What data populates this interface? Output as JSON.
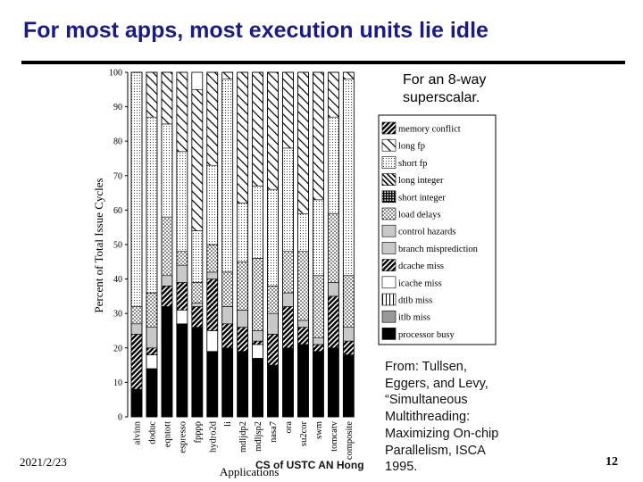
{
  "slide": {
    "title": "For most apps, most execution units lie idle",
    "note": [
      "For an 8-way",
      "superscalar."
    ],
    "source": [
      "From: Tullsen,",
      "Eggers, and Levy,",
      "“Simultaneous",
      "Multithreading:",
      "Maximizing On-chip",
      "Parallelism, ISCA",
      "1995."
    ],
    "date": "2021/2/23",
    "footer": "CS of USTC AN Hong",
    "page": "12"
  },
  "chart_data": {
    "type": "bar",
    "stacked": true,
    "title": "",
    "xlabel": "Applications",
    "ylabel": "Percent of Total Issue Cycles",
    "ylim": [
      0,
      100
    ],
    "yticks": [
      "0",
      "10",
      "20",
      "30",
      "40",
      "50",
      "60",
      "70",
      "80",
      "90",
      "100"
    ],
    "categories": [
      "alvinn",
      "doduc",
      "eqntott",
      "espresso",
      "fpppp",
      "hydro2d",
      "li",
      "mdljdp2",
      "mdljsp2",
      "nasa7",
      "ora",
      "su2cor",
      "swm",
      "tomcatv",
      "composite"
    ],
    "series": [
      {
        "name": "processor busy",
        "values": [
          8,
          14,
          32,
          27,
          26,
          19,
          20,
          19,
          17,
          15,
          20,
          21,
          19,
          20,
          18
        ],
        "pattern": "solid-black"
      },
      {
        "name": "itlb miss",
        "values": [
          0,
          0,
          0,
          0,
          0,
          0,
          0,
          0,
          0,
          0,
          0,
          0,
          0,
          0,
          0
        ],
        "pattern": "gray"
      },
      {
        "name": "dtlb miss",
        "values": [
          0,
          0,
          0,
          0,
          0,
          0,
          0,
          0,
          0,
          0,
          0,
          0,
          0,
          0,
          0
        ],
        "pattern": "vertical-lines"
      },
      {
        "name": "icache miss",
        "values": [
          0,
          4,
          0,
          4,
          0,
          6,
          0,
          0,
          4,
          0,
          0,
          0,
          0,
          0,
          0
        ],
        "pattern": "white"
      },
      {
        "name": "dcache miss",
        "values": [
          16,
          2,
          6,
          8,
          6,
          15,
          7,
          7,
          1,
          9,
          12,
          5,
          2,
          15,
          4
        ],
        "pattern": "dense-hatch"
      },
      {
        "name": "branch misprediction",
        "values": [
          3,
          6,
          3,
          5,
          1,
          2,
          5,
          5,
          3,
          6,
          4,
          2,
          2,
          4,
          4
        ],
        "pattern": "light-gray"
      },
      {
        "name": "control hazards",
        "values": [
          0,
          0,
          0,
          0,
          0,
          0,
          0,
          0,
          0,
          0,
          0,
          0,
          0,
          0,
          0
        ],
        "pattern": "light-gray"
      },
      {
        "name": "load delays",
        "values": [
          5,
          10,
          17,
          4,
          6,
          8,
          10,
          14,
          21,
          8,
          12,
          20,
          18,
          20,
          15
        ],
        "pattern": "dots"
      },
      {
        "name": "short integer",
        "values": [
          0,
          0,
          0,
          0,
          0,
          0,
          0,
          0,
          0,
          0,
          0,
          0,
          0,
          0,
          0
        ],
        "pattern": "grid"
      },
      {
        "name": "long integer",
        "values": [
          0,
          0,
          0,
          0,
          0,
          0,
          0,
          0,
          0,
          0,
          0,
          0,
          0,
          0,
          0
        ],
        "pattern": "diagonal"
      },
      {
        "name": "short fp",
        "values": [
          68,
          51,
          27,
          29,
          15,
          23,
          56,
          17,
          21,
          28,
          30,
          11,
          22,
          28,
          57
        ],
        "pattern": "fine-dots"
      },
      {
        "name": "long fp",
        "values": [
          0,
          13,
          15,
          23,
          41,
          27,
          2,
          38,
          33,
          34,
          22,
          41,
          37,
          13,
          2
        ],
        "pattern": "wide-hatch"
      },
      {
        "name": "memory conflict",
        "values": [
          0,
          0,
          0,
          0,
          0,
          0,
          0,
          0,
          0,
          0,
          0,
          0,
          0,
          0,
          0
        ],
        "pattern": "dense-hatch"
      }
    ],
    "legend_order": [
      "memory conflict",
      "long fp",
      "short fp",
      "long integer",
      "short integer",
      "load delays",
      "control hazards",
      "branch misprediction",
      "dcache miss",
      "icache miss",
      "dtlb miss",
      "itlb miss",
      "processor busy"
    ],
    "legend_position": "right",
    "grid": false
  }
}
